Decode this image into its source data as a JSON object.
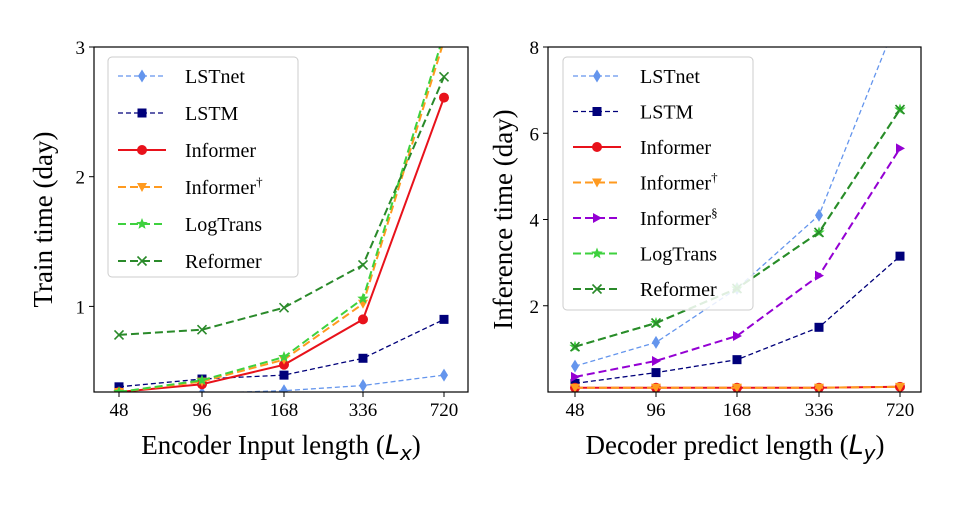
{
  "chart_data": [
    {
      "type": "line",
      "xlabel": "Encoder Input length (",
      "xlabel_symbol": "L",
      "xlabel_subscript": "x",
      "xlabel_close": ")",
      "ylabel": "Train time (day)",
      "categories": [
        "48",
        "96",
        "168",
        "336",
        "720"
      ],
      "ylim": [
        0.34,
        3.0
      ],
      "yticks": [
        1,
        2,
        3
      ],
      "ytick_labels": [
        "1",
        "2",
        "3"
      ],
      "legend_position": "upper-left",
      "series": [
        {
          "name": "LSTnet",
          "sup": "",
          "values": [
            0.33,
            0.33,
            0.35,
            0.39,
            0.47
          ],
          "color": "#6495ed",
          "dash": "5,3",
          "marker": "diamond",
          "width": 1.3
        },
        {
          "name": "LSTM",
          "sup": "",
          "values": [
            0.38,
            0.44,
            0.47,
            0.6,
            0.9
          ],
          "color": "#00007a",
          "dash": "5,3",
          "marker": "square",
          "width": 1.3
        },
        {
          "name": "Informer",
          "sup": "",
          "values": [
            0.34,
            0.4,
            0.55,
            0.9,
            2.61
          ],
          "color": "#e8121b",
          "dash": "",
          "marker": "circle",
          "width": 2
        },
        {
          "name": "Informer",
          "sup": "†",
          "values": [
            0.34,
            0.42,
            0.59,
            1.02,
            3.05
          ],
          "color": "#ff9a1f",
          "dash": "8,4",
          "marker": "triangle-down",
          "width": 2
        },
        {
          "name": "LogTrans",
          "sup": "",
          "values": [
            0.34,
            0.43,
            0.61,
            1.06,
            3.1
          ],
          "color": "#3ed13e",
          "dash": "8,4",
          "marker": "star",
          "width": 2
        },
        {
          "name": "Reformer",
          "sup": "",
          "values": [
            0.78,
            0.82,
            0.99,
            1.32,
            2.77
          ],
          "color": "#2a8a2a",
          "dash": "8,4",
          "marker": "x",
          "width": 2
        }
      ]
    },
    {
      "type": "line",
      "xlabel": "Decoder predict length (",
      "xlabel_symbol": "L",
      "xlabel_subscript": "y",
      "xlabel_close": ")",
      "ylabel": "Inference time (day)",
      "categories": [
        "48",
        "96",
        "168",
        "336",
        "720"
      ],
      "ylim": [
        0.0,
        8.0
      ],
      "yticks": [
        2,
        4,
        6,
        8
      ],
      "ytick_labels": [
        "2",
        "4",
        "6",
        "8"
      ],
      "legend_position": "upper-left",
      "series": [
        {
          "name": "LSTnet",
          "sup": "",
          "values": [
            0.6,
            1.15,
            2.4,
            4.1,
            8.8
          ],
          "color": "#6495ed",
          "dash": "5,3",
          "marker": "diamond",
          "width": 1.3
        },
        {
          "name": "LSTM",
          "sup": "",
          "values": [
            0.2,
            0.45,
            0.75,
            1.5,
            3.15
          ],
          "color": "#00007a",
          "dash": "5,3",
          "marker": "square",
          "width": 1.3
        },
        {
          "name": "Informer",
          "sup": "",
          "values": [
            0.1,
            0.1,
            0.1,
            0.1,
            0.12
          ],
          "color": "#e8121b",
          "dash": "",
          "marker": "circle",
          "width": 2
        },
        {
          "name": "Informer",
          "sup": "†",
          "values": [
            0.1,
            0.1,
            0.1,
            0.1,
            0.12
          ],
          "color": "#ff9a1f",
          "dash": "8,4",
          "marker": "triangle-down",
          "width": 2
        },
        {
          "name": "Informer",
          "sup": "§",
          "values": [
            0.35,
            0.72,
            1.3,
            2.7,
            5.65
          ],
          "color": "#9400d3",
          "dash": "8,4",
          "marker": "triangle-right",
          "width": 2
        },
        {
          "name": "LogTrans",
          "sup": "",
          "values": [
            1.05,
            1.6,
            2.4,
            3.7,
            6.55
          ],
          "color": "#3ed13e",
          "dash": "8,4",
          "marker": "star",
          "width": 2
        },
        {
          "name": "Reformer",
          "sup": "",
          "values": [
            1.05,
            1.6,
            2.4,
            3.7,
            6.55
          ],
          "color": "#2a8a2a",
          "dash": "8,4",
          "marker": "x",
          "width": 2
        }
      ]
    }
  ]
}
